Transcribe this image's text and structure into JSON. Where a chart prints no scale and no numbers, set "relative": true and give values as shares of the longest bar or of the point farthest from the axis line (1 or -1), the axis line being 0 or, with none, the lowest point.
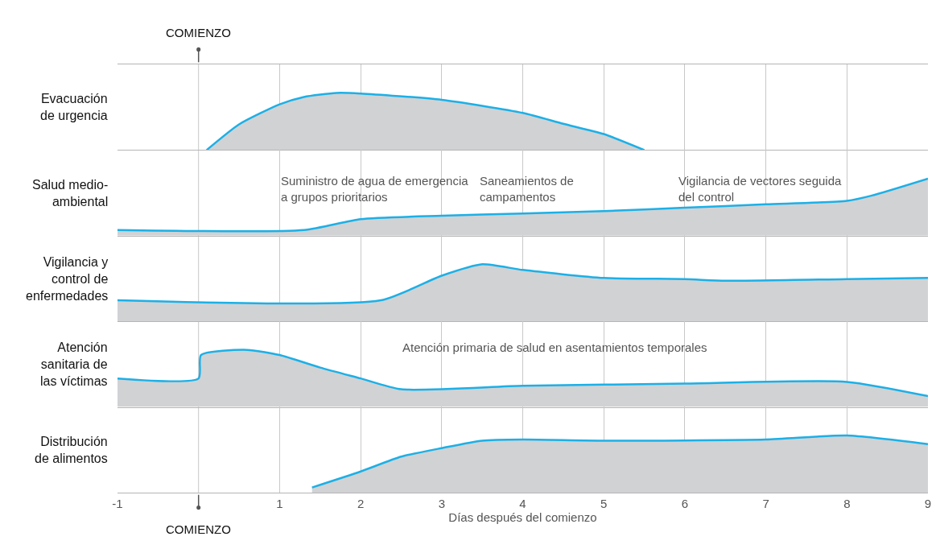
{
  "chart_data": [
    {
      "type": "area",
      "relative": true,
      "ylabel": "Evacuación\nde urgencia",
      "xlim": [
        -1,
        9
      ],
      "xticks": [
        -1,
        1,
        2,
        3,
        4,
        5,
        6,
        7,
        8,
        9
      ],
      "grid": "x",
      "tick_labels": false,
      "ref_lines": [
        {
          "axis": "x",
          "value": 0,
          "label": "COMIENZO"
        }
      ],
      "series": [
        {
          "color": "#1cb0e6",
          "x": [
            0.1,
            0.5,
            1,
            1.3,
            1.7,
            2,
            3,
            4,
            4.5,
            5,
            5.5
          ],
          "values": [
            0,
            0.45,
            0.8,
            0.93,
            1.0,
            0.99,
            0.88,
            0.65,
            0.46,
            0.28,
            0
          ]
        }
      ]
    },
    {
      "type": "area",
      "relative": true,
      "ylabel": "Salud medio-\nambiental",
      "xlim": [
        -1,
        9
      ],
      "xticks": [
        -1,
        1,
        2,
        3,
        4,
        5,
        6,
        7,
        8,
        9
      ],
      "grid": "x",
      "tick_labels": false,
      "annotations": [
        "Suministro de agua de emergencia\na grupos prioritarios",
        "Saneamientos de\ncampamentos",
        "Vigilancia de vectores seguida\ndel control"
      ],
      "series": [
        {
          "color": "#1cb0e6",
          "x": [
            -1,
            1.3,
            2,
            3,
            4,
            5,
            6,
            7,
            8,
            8.3,
            9
          ],
          "values": [
            0.1,
            0.1,
            0.29,
            0.35,
            0.39,
            0.43,
            0.49,
            0.55,
            0.61,
            0.7,
            1.0
          ]
        }
      ]
    },
    {
      "type": "area",
      "relative": true,
      "ylabel": "Vigilancia y\ncontrol de\nenfermedades",
      "xlim": [
        -1,
        9
      ],
      "xticks": [
        -1,
        1,
        2,
        3,
        4,
        5,
        6,
        7,
        8,
        9
      ],
      "grid": "x",
      "tick_labels": false,
      "series": [
        {
          "color": "#1cb0e6",
          "x": [
            -1,
            2.25,
            3,
            3.5,
            4,
            5,
            6,
            6.5,
            8,
            9
          ],
          "values": [
            0.37,
            0.37,
            0.8,
            1.0,
            0.9,
            0.76,
            0.74,
            0.71,
            0.74,
            0.76
          ]
        }
      ]
    },
    {
      "type": "area",
      "relative": true,
      "ylabel": "Atención\nsanitaria de\nlas víctimas",
      "xlim": [
        -1,
        9
      ],
      "xticks": [
        -1,
        1,
        2,
        3,
        4,
        5,
        6,
        7,
        8,
        9
      ],
      "grid": "x",
      "tick_labels": false,
      "annotations": [
        "Atención primaria de salud en asentamientos temporales"
      ],
      "series": [
        {
          "color": "#1cb0e6",
          "x": [
            -1,
            0,
            0.03,
            0.6,
            1,
            1.5,
            2,
            2.5,
            4,
            6,
            8,
            9
          ],
          "values": [
            0.5,
            0.5,
            0.91,
            1.0,
            0.91,
            0.69,
            0.5,
            0.31,
            0.37,
            0.41,
            0.44,
            0.19
          ]
        }
      ]
    },
    {
      "type": "area",
      "relative": true,
      "ylabel": "Distribución\nde alimentos",
      "xlabel": "Días después del comienzo",
      "xlim": [
        -1,
        9
      ],
      "xticks": [
        -1,
        1,
        2,
        3,
        4,
        5,
        6,
        7,
        8,
        9
      ],
      "grid": "x",
      "tick_labels": "x",
      "ref_lines": [
        {
          "axis": "x",
          "value": 0,
          "label": "COMIENZO"
        }
      ],
      "series": [
        {
          "color": "#1cb0e6",
          "x": [
            1.4,
            2,
            2.5,
            3,
            3.5,
            4,
            5,
            7,
            8,
            9
          ],
          "values": [
            0.09,
            0.37,
            0.63,
            0.78,
            0.91,
            0.93,
            0.91,
            0.93,
            1.0,
            0.85
          ]
        }
      ]
    }
  ]
}
